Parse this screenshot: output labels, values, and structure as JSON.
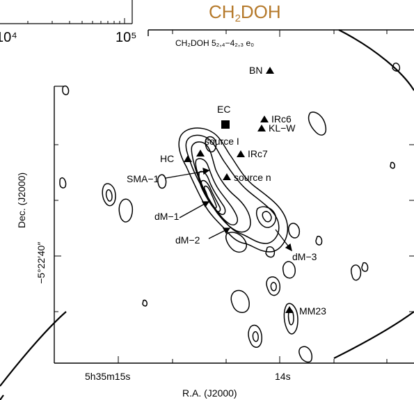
{
  "heading": {
    "pre": "CH",
    "sub": "2",
    "post": "DOH"
  },
  "panel_label": "CH₂DOH  5₂,₄−4₂,₃ e₀",
  "inset_ticks": {
    "left": "10⁴",
    "right": "10⁵"
  },
  "chart_data": {
    "type": "contour-map",
    "title": "CH2DOH 5(2,4)-4(2,3) e0",
    "xlabel": "R.A. (J2000)",
    "ylabel": "Dec. (J2000)",
    "x_ticks": [
      {
        "label": "5h35m15s",
        "ra_sec": 15.0
      },
      {
        "label": "14s",
        "ra_sec": 14.0
      }
    ],
    "y_ticks": [
      {
        "label": "−5°22′40″",
        "dec_arcsec": 40
      }
    ],
    "primary_beam": "circular field boundary",
    "sources": [
      {
        "label": "BN",
        "ra_sec": 14.11,
        "dec_arcsec": 22.4,
        "marker": "triangle"
      },
      {
        "label": "EC",
        "ra_sec": 14.5,
        "dec_arcsec": 31.2,
        "marker": "square"
      },
      {
        "label": "IRc6",
        "ra_sec": 14.2,
        "dec_arcsec": 31.9,
        "marker": "triangle"
      },
      {
        "label": "KL−W",
        "ra_sec": 14.25,
        "dec_arcsec": 32.4,
        "marker": "triangle"
      },
      {
        "label": "source I",
        "ra_sec": 14.51,
        "dec_arcsec": 34.5,
        "marker": "triangle"
      },
      {
        "label": "IRc7",
        "ra_sec": 14.43,
        "dec_arcsec": 34.9,
        "marker": "triangle"
      },
      {
        "label": "HC",
        "ra_sec": 14.8,
        "dec_arcsec": 35.1,
        "marker": "triangle"
      },
      {
        "label": "source n",
        "ra_sec": 14.45,
        "dec_arcsec": 36.1,
        "marker": "triangle"
      },
      {
        "label": "MM23",
        "ra_sec": 14.04,
        "dec_arcsec": 44.7,
        "marker": "triangle"
      }
    ],
    "cores": [
      {
        "label": "SMA−1"
      },
      {
        "label": "dM−1"
      },
      {
        "label": "dM−2"
      },
      {
        "label": "dM−3"
      }
    ]
  }
}
